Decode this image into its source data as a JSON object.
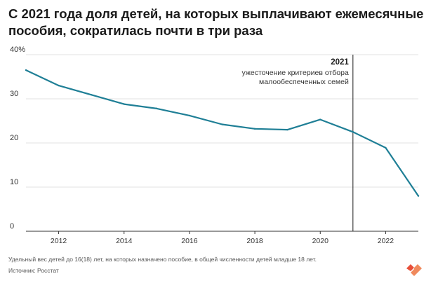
{
  "title_lines": [
    "С 2021 года доля детей, на которых выплачивают ежемесячные",
    "пособия, сократилась почти в три раза"
  ],
  "footnote": "Удельный вес детей до 16(18) лет, на которых назначено пособие, в общей численности детей младше 18 лет.",
  "source": "Источник: Росстат",
  "logo": {
    "icon": "heart-logo-icon",
    "colors": [
      "#e8503a",
      "#f08a5d"
    ]
  },
  "chart_data": {
    "type": "line",
    "title": "",
    "xlabel": "",
    "ylabel": "",
    "xlim": [
      2011,
      2023
    ],
    "ylim": [
      0,
      40
    ],
    "yticks": [
      0,
      10,
      20,
      30,
      40
    ],
    "ytick_labels": [
      "0",
      "10",
      "20",
      "30",
      "40%"
    ],
    "xticks": [
      2012,
      2014,
      2016,
      2018,
      2020,
      2022
    ],
    "xtick_labels": [
      "2012",
      "2014",
      "2016",
      "2018",
      "2020",
      "2022"
    ],
    "grid": true,
    "line_color": "#1f7f96",
    "series": [
      {
        "x": [
          2011,
          2012,
          2013,
          2014,
          2015,
          2016,
          2017,
          2018,
          2019,
          2020,
          2021,
          2022,
          2023
        ],
        "values": [
          36.5,
          33.0,
          30.9,
          28.8,
          27.8,
          26.2,
          24.2,
          23.2,
          23.0,
          25.3,
          22.5,
          18.9,
          8.0
        ]
      }
    ],
    "annotation": {
      "x": 2021,
      "year_label": "2021",
      "text_lines": [
        "ужесточение критериев отбора",
        "малообеспеченных семей"
      ]
    }
  }
}
